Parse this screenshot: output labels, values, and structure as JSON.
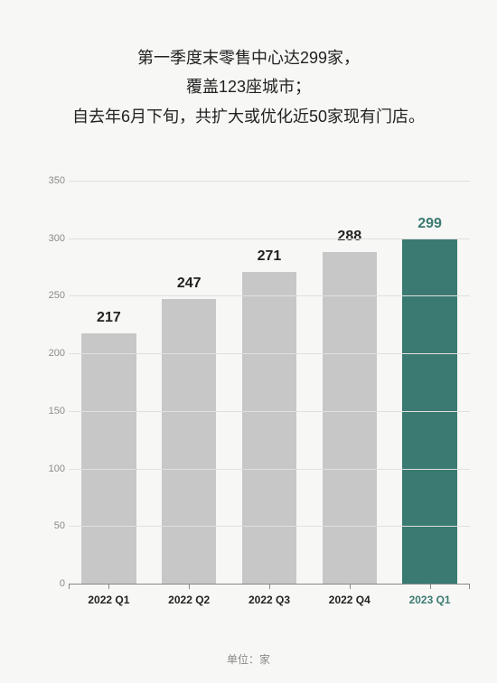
{
  "header": {
    "line1": "第一季度末零售中心达299家，",
    "line2": "覆盖123座城市；",
    "line3": "自去年6月下旬，共扩大或优化近50家现有门店。"
  },
  "chart": {
    "type": "bar",
    "categories": [
      "2022 Q1",
      "2022 Q2",
      "2022 Q3",
      "2022 Q4",
      "2023 Q1"
    ],
    "values": [
      217,
      247,
      271,
      288,
      299
    ],
    "bar_colors": [
      "#c7c7c7",
      "#c7c7c7",
      "#c7c7c7",
      "#c7c7c7",
      "#3a7a72"
    ],
    "value_label_colors": [
      "#222222",
      "#222222",
      "#222222",
      "#222222",
      "#3a7a72"
    ],
    "x_label_colors": [
      "#222222",
      "#222222",
      "#222222",
      "#222222",
      "#3a7a72"
    ],
    "ylim": [
      0,
      350
    ],
    "ytick_step": 50,
    "yticks": [
      0,
      50,
      100,
      150,
      200,
      250,
      300,
      350
    ],
    "grid_color": "#e0e0de",
    "axis_color": "#888888",
    "background_color": "#f7f7f5",
    "bar_width_ratio": 0.68,
    "value_label_fontsize": 16,
    "value_label_fontweight": 600,
    "tick_fontsize": 11,
    "x_label_fontsize": 12
  },
  "unit_label": "单位：家"
}
